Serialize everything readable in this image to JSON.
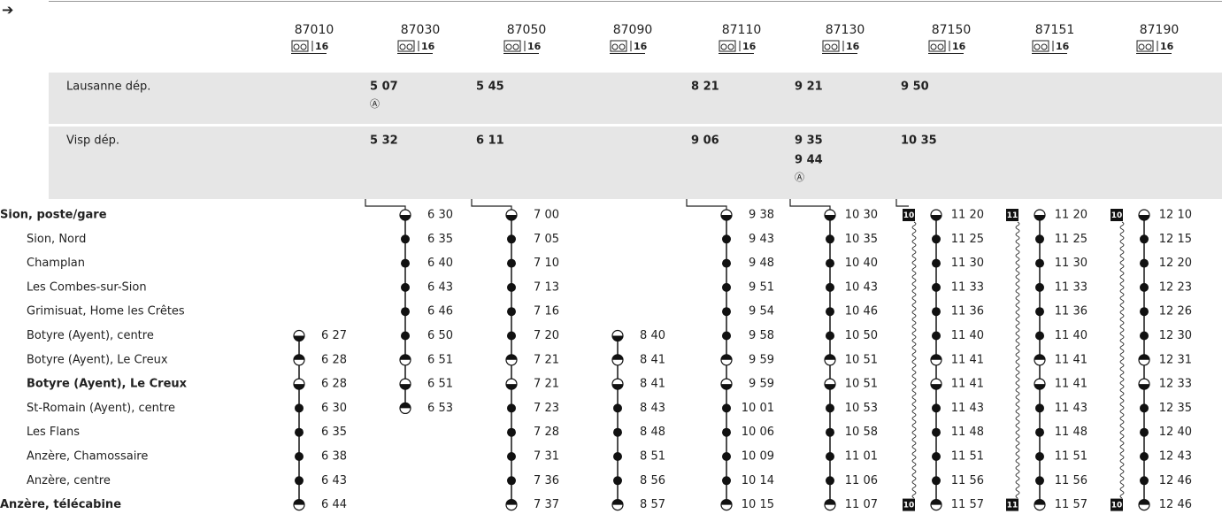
{
  "arrow": "➔",
  "trains": [
    {
      "number": "87010",
      "footnote": "16",
      "times": [
        null,
        null,
        null,
        null,
        null,
        "6 27",
        "6 28",
        "6 28",
        "6 30",
        "6 35",
        "6 38",
        "6 43",
        "6 44"
      ]
    },
    {
      "number": "87030",
      "footnote": "16",
      "times": [
        "6 30",
        "6 35",
        "6 40",
        "6 43",
        "6 46",
        "6 50",
        "6 51",
        "6 51",
        "6 53",
        null,
        null,
        null,
        null
      ]
    },
    {
      "number": "87050",
      "footnote": "16",
      "times": [
        "7 00",
        "7 05",
        "7 10",
        "7 13",
        "7 16",
        "7 20",
        "7 21",
        "7 21",
        "7 23",
        "7 28",
        "7 31",
        "7 36",
        "7 37"
      ]
    },
    {
      "number": "87090",
      "footnote": "16",
      "times": [
        null,
        null,
        null,
        null,
        null,
        "8 40",
        "8 41",
        "8 41",
        "8 43",
        "8 48",
        "8 51",
        "8 56",
        "8 57"
      ]
    },
    {
      "number": "87110",
      "footnote": "16",
      "times": [
        "9 38",
        "9 43",
        "9 48",
        "9 51",
        "9 54",
        "9 58",
        "9 59",
        "9 59",
        "10 01",
        "10 06",
        "10 09",
        "10 14",
        "10 15"
      ]
    },
    {
      "number": "87130",
      "footnote": "16",
      "times": [
        "10 30",
        "10 35",
        "10 40",
        "10 43",
        "10 46",
        "10 50",
        "10 51",
        "10 51",
        "10 53",
        "10 58",
        "11 01",
        "11 06",
        "11 07"
      ]
    },
    {
      "number": "87150",
      "footnote": "16",
      "badges": [
        "10",
        "10"
      ],
      "times": [
        "11 20",
        "11 25",
        "11 30",
        "11 33",
        "11 36",
        "11 40",
        "11 41",
        "11 41",
        "11 43",
        "11 48",
        "11 51",
        "11 56",
        "11 57"
      ]
    },
    {
      "number": "87151",
      "footnote": "16",
      "badges": [
        "11",
        "11"
      ],
      "times": [
        "11 20",
        "11 25",
        "11 30",
        "11 33",
        "11 36",
        "11 40",
        "11 41",
        "11 41",
        "11 43",
        "11 48",
        "11 51",
        "11 56",
        "11 57"
      ]
    },
    {
      "number": "87190",
      "footnote": "16",
      "badges": [
        "10",
        "10"
      ],
      "times": [
        "12 10",
        "12 15",
        "12 20",
        "12 23",
        "12 26",
        "12 30",
        "12 31",
        "12 33",
        "12 35",
        "12 40",
        "12 43",
        "12 46",
        "12 46"
      ]
    }
  ],
  "connections": [
    {
      "station": "Lausanne dép.",
      "cells": [
        null,
        {
          "times": [
            "5 07"
          ],
          "note": "Ⓐ"
        },
        {
          "times": [
            "5 45"
          ]
        },
        null,
        {
          "times": [
            "8 21"
          ]
        },
        {
          "times": [
            "9 21"
          ]
        },
        {
          "times": [
            "9 50"
          ]
        },
        null,
        null
      ]
    },
    {
      "station": "Visp dép.",
      "cells": [
        null,
        {
          "times": [
            "5 32"
          ]
        },
        {
          "times": [
            "6 11"
          ]
        },
        null,
        {
          "times": [
            "9 06"
          ]
        },
        {
          "times": [
            "9 35",
            "9 44"
          ],
          "note": "Ⓐ"
        },
        {
          "times": [
            "10 35"
          ]
        },
        null,
        null
      ]
    }
  ],
  "stations": [
    "Sion, poste/gare",
    "Sion, Nord",
    "Champlan",
    "Les Combes-sur-Sion",
    "Grimisuat, Home les Crêtes",
    "Botyre (Ayent), centre",
    "Botyre (Ayent), Le Creux",
    "Botyre (Ayent), Le Creux",
    "St-Romain (Ayent), centre",
    "Les Flans",
    "Anzère, Chamossaire",
    "Anzère, centre",
    "Anzère, télécabine"
  ]
}
